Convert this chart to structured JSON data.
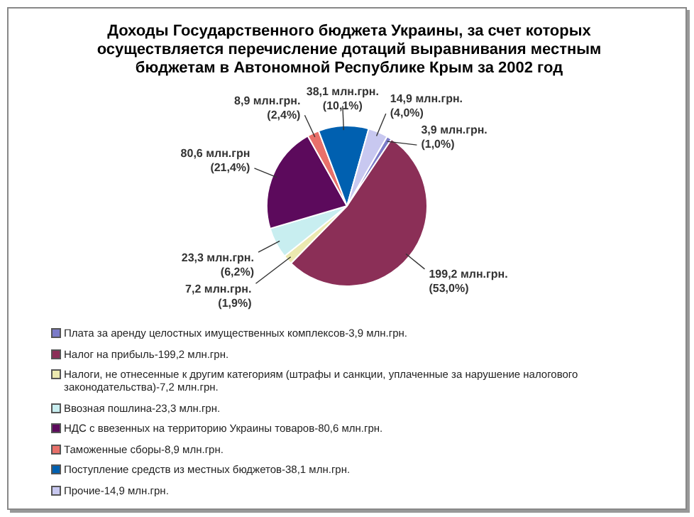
{
  "chart_data": {
    "type": "pie",
    "title": "Доходы Государственного бюджета Украины, за счет которых осуществляется перечисление дотаций выравнивания местным бюджетам в Автономной Республике Крым за 2002 год",
    "categories": [
      "Плата за аренду целостных имущественных комплексов-3,9  млн.грн.",
      "Налог на прибыль-199,2 млн.грн.",
      "Налоги, не отнесенные к другим категориям (штрафы и санкции, уплаченные за нарушение налогового законодательства)-7,2 млн.грн.",
      "Ввозная пошлина-23,3 млн.грн.",
      "НДС с ввезенных на территорию Украины товаров-80,6 млн.грн.",
      "Таможенные сборы-8,9 млн.грн.",
      "Поступление средств из местных бюджетов-38,1 млн.грн.",
      "Прочие-14,9 млн.грн."
    ],
    "values": [
      3.9,
      199.2,
      7.2,
      23.3,
      80.6,
      8.9,
      38.1,
      14.9
    ],
    "colors": [
      "#7b7bc8",
      "#8b2f57",
      "#ece9b0",
      "#c8eef0",
      "#5c0a5c",
      "#e8706a",
      "#0060b0",
      "#c8c8f0"
    ],
    "value_labels": [
      "3,9 млн.грн. (1,0%)",
      "199,2 млн.грн. (53,0%)",
      "7,2 млн.грн. (1,9%)",
      "23,3 млн.грн. (6,2%)",
      "80,6 млн.грн (21,4%)",
      "8,9 млн.грн. (2,4%)",
      "38,1 млн.грн. (10,1%)",
      "14,9 млн.грн. (4,0%)"
    ],
    "legend": "bottom"
  }
}
